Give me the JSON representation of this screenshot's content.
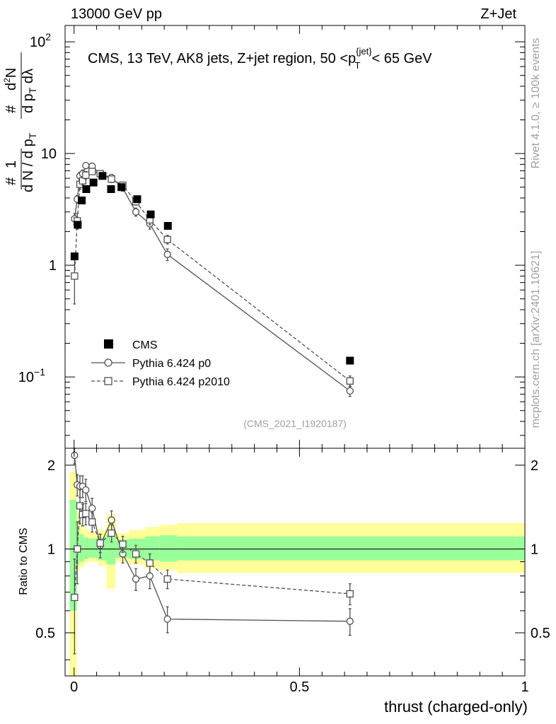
{
  "header": {
    "left": "13000 GeV pp",
    "right": "Z+Jet"
  },
  "side_labels": {
    "rivet": "Rivet 4.1.0, ≥ 100k events",
    "source": "mcplots.cern.ch [arXiv:2401.10621]"
  },
  "chart_data": {
    "type": "scatter",
    "title": "CMS, 13 TeV, AK8 jets, Z+jet region, 50 <p_T^{jet}< 65 GeV",
    "title_parts": {
      "main": "CMS, 13 TeV, AK8 jets, Z+jet region, 50 <p",
      "sup": "{jet}",
      "sub": "T",
      "tail": "< 65 GeV"
    },
    "analysis_id": "(CMS_2021_I1920187)",
    "xlabel": "thrust (charged-only)",
    "ylabel": "1/N dN/dp_T dλ (d²N / dp_T dλ)",
    "ratio_ylabel": "Ratio to CMS",
    "xlim": [
      -0.02,
      1.0
    ],
    "ylim": [
      0.023,
      140
    ],
    "ratio_ylim": [
      0.35,
      2.3
    ],
    "xticks": [
      {
        "v": 0,
        "label": "0"
      },
      {
        "v": 0.5,
        "label": "0.5"
      },
      {
        "v": 1,
        "label": "1"
      }
    ],
    "yticks": [
      {
        "v": 0.1,
        "base": "10",
        "exp": "−1"
      },
      {
        "v": 1,
        "base": "1",
        "exp": ""
      },
      {
        "v": 10,
        "base": "10",
        "exp": ""
      },
      {
        "v": 100,
        "base": "10",
        "exp": "2"
      }
    ],
    "ratio_yticks": [
      {
        "v": 0.5,
        "label": "0.5"
      },
      {
        "v": 1,
        "label": "1"
      },
      {
        "v": 2,
        "label": "2"
      }
    ],
    "legend": [
      {
        "label": "CMS",
        "marker": "square-filled"
      },
      {
        "label": "Pythia 6.424 p0",
        "marker": "circle-open"
      },
      {
        "label": "Pythia 6.424 p2010",
        "marker": "square-open"
      }
    ],
    "data": {
      "name": "CMS",
      "points": [
        {
          "x": 0.001,
          "y": 1.2,
          "lo": -0.01,
          "hi": 0.006
        },
        {
          "x": 0.008,
          "y": 2.3,
          "lo": 0.006,
          "hi": 0.012
        },
        {
          "x": 0.017,
          "y": 3.8,
          "lo": 0.012,
          "hi": 0.022
        },
        {
          "x": 0.027,
          "y": 4.8,
          "lo": 0.022,
          "hi": 0.032
        },
        {
          "x": 0.043,
          "y": 5.5,
          "lo": 0.032,
          "hi": 0.054
        },
        {
          "x": 0.063,
          "y": 6.3,
          "lo": 0.054,
          "hi": 0.072
        },
        {
          "x": 0.082,
          "y": 4.8,
          "lo": 0.072,
          "hi": 0.092
        },
        {
          "x": 0.105,
          "y": 5.0,
          "lo": 0.092,
          "hi": 0.122
        },
        {
          "x": 0.14,
          "y": 3.9,
          "lo": 0.122,
          "hi": 0.158
        },
        {
          "x": 0.17,
          "y": 2.85,
          "lo": 0.158,
          "hi": 0.19
        },
        {
          "x": 0.208,
          "y": 2.25,
          "lo": 0.19,
          "hi": 0.228
        },
        {
          "x": 0.612,
          "y": 0.14,
          "lo": 0.228,
          "hi": 1.0
        }
      ]
    },
    "series": [
      {
        "name": "Pythia 6.424 p0",
        "style": "solid",
        "points": [
          {
            "x": 0.001,
            "y": 2.6,
            "err": 0.3
          },
          {
            "x": 0.007,
            "y": 3.9,
            "err": 0.3
          },
          {
            "x": 0.013,
            "y": 6.3,
            "err": 0.5
          },
          {
            "x": 0.019,
            "y": 6.6,
            "err": 0.5
          },
          {
            "x": 0.026,
            "y": 7.8,
            "err": 0.5
          },
          {
            "x": 0.04,
            "y": 7.7,
            "err": 0.5
          },
          {
            "x": 0.058,
            "y": 6.5,
            "err": 0.4
          },
          {
            "x": 0.083,
            "y": 6.1,
            "err": 0.4
          },
          {
            "x": 0.108,
            "y": 4.9,
            "err": 0.3
          },
          {
            "x": 0.137,
            "y": 3.0,
            "err": 0.25
          },
          {
            "x": 0.168,
            "y": 2.35,
            "err": 0.25
          },
          {
            "x": 0.207,
            "y": 1.25,
            "err": 0.15
          },
          {
            "x": 0.612,
            "y": 0.075,
            "err": 0.008
          }
        ],
        "ratio": [
          {
            "x": 0.001,
            "y": 2.17,
            "err": 0.15
          },
          {
            "x": 0.007,
            "y": 1.7,
            "err": 0.15
          },
          {
            "x": 0.013,
            "y": 1.68,
            "err": 0.15
          },
          {
            "x": 0.019,
            "y": 1.68,
            "err": 0.15
          },
          {
            "x": 0.026,
            "y": 1.63,
            "err": 0.15
          },
          {
            "x": 0.04,
            "y": 1.4,
            "err": 0.12
          },
          {
            "x": 0.058,
            "y": 1.03,
            "err": 0.1
          },
          {
            "x": 0.083,
            "y": 1.27,
            "err": 0.1
          },
          {
            "x": 0.108,
            "y": 0.96,
            "err": 0.07
          },
          {
            "x": 0.137,
            "y": 0.78,
            "err": 0.07
          },
          {
            "x": 0.168,
            "y": 0.8,
            "err": 0.08
          },
          {
            "x": 0.207,
            "y": 0.56,
            "err": 0.06
          },
          {
            "x": 0.612,
            "y": 0.55,
            "err": 0.06
          }
        ]
      },
      {
        "name": "Pythia 6.424 p2010",
        "style": "dashed",
        "points": [
          {
            "x": 0.001,
            "y": 0.8,
            "err": 0.35
          },
          {
            "x": 0.007,
            "y": 2.5,
            "err": 0.4
          },
          {
            "x": 0.013,
            "y": 5.3,
            "err": 0.5
          },
          {
            "x": 0.019,
            "y": 5.7,
            "err": 0.5
          },
          {
            "x": 0.026,
            "y": 6.4,
            "err": 0.5
          },
          {
            "x": 0.04,
            "y": 6.9,
            "err": 0.4
          },
          {
            "x": 0.058,
            "y": 6.6,
            "err": 0.4
          },
          {
            "x": 0.083,
            "y": 5.9,
            "err": 0.4
          },
          {
            "x": 0.108,
            "y": 5.2,
            "err": 0.3
          },
          {
            "x": 0.137,
            "y": 3.7,
            "err": 0.25
          },
          {
            "x": 0.168,
            "y": 2.55,
            "err": 0.25
          },
          {
            "x": 0.207,
            "y": 1.7,
            "err": 0.15
          },
          {
            "x": 0.612,
            "y": 0.092,
            "err": 0.01
          }
        ],
        "ratio": [
          {
            "x": 0.001,
            "y": 0.67,
            "err": 0.25
          },
          {
            "x": 0.007,
            "y": 1.0,
            "err": 0.25
          },
          {
            "x": 0.013,
            "y": 1.43,
            "err": 0.2
          },
          {
            "x": 0.019,
            "y": 1.33,
            "err": 0.12
          },
          {
            "x": 0.026,
            "y": 1.34,
            "err": 0.12
          },
          {
            "x": 0.04,
            "y": 1.25,
            "err": 0.1
          },
          {
            "x": 0.058,
            "y": 1.05,
            "err": 0.08
          },
          {
            "x": 0.083,
            "y": 1.14,
            "err": 0.08
          },
          {
            "x": 0.108,
            "y": 1.04,
            "err": 0.07
          },
          {
            "x": 0.137,
            "y": 0.96,
            "err": 0.07
          },
          {
            "x": 0.168,
            "y": 0.89,
            "err": 0.07
          },
          {
            "x": 0.207,
            "y": 0.78,
            "err": 0.06
          },
          {
            "x": 0.612,
            "y": 0.69,
            "err": 0.06
          }
        ]
      }
    ],
    "ratio_bands": [
      {
        "lo": -0.01,
        "hi": 0.006,
        "inner": [
          0.6,
          1.5
        ],
        "outer": [
          0.3,
          1.9
        ]
      },
      {
        "lo": 0.006,
        "hi": 0.012,
        "inner": [
          0.88,
          1.2
        ],
        "outer": [
          0.84,
          1.35
        ]
      },
      {
        "lo": 0.012,
        "hi": 0.022,
        "inner": [
          0.9,
          1.13
        ],
        "outer": [
          0.86,
          1.22
        ]
      },
      {
        "lo": 0.022,
        "hi": 0.032,
        "inner": [
          0.92,
          1.1
        ],
        "outer": [
          0.89,
          1.18
        ]
      },
      {
        "lo": 0.032,
        "hi": 0.054,
        "inner": [
          0.93,
          1.09
        ],
        "outer": [
          0.9,
          1.15
        ]
      },
      {
        "lo": 0.054,
        "hi": 0.072,
        "inner": [
          0.91,
          1.1
        ],
        "outer": [
          0.87,
          1.17
        ]
      },
      {
        "lo": 0.072,
        "hi": 0.092,
        "inner": [
          0.88,
          1.13
        ],
        "outer": [
          0.72,
          1.33
        ]
      },
      {
        "lo": 0.092,
        "hi": 0.122,
        "inner": [
          0.93,
          1.08
        ],
        "outer": [
          0.9,
          1.14
        ]
      },
      {
        "lo": 0.122,
        "hi": 0.158,
        "inner": [
          0.92,
          1.09
        ],
        "outer": [
          0.88,
          1.17
        ]
      },
      {
        "lo": 0.158,
        "hi": 0.19,
        "inner": [
          0.91,
          1.11
        ],
        "outer": [
          0.85,
          1.2
        ]
      },
      {
        "lo": 0.19,
        "hi": 0.228,
        "inner": [
          0.9,
          1.12
        ],
        "outer": [
          0.84,
          1.22
        ]
      },
      {
        "lo": 0.228,
        "hi": 1.0,
        "inner": [
          0.91,
          1.11
        ],
        "outer": [
          0.82,
          1.24
        ]
      }
    ]
  },
  "colors": {
    "inner_band": "#99ff99",
    "outer_band": "#ffff99",
    "data": "#000000",
    "mc": "#505050",
    "side_text": "#a0a0a0"
  }
}
